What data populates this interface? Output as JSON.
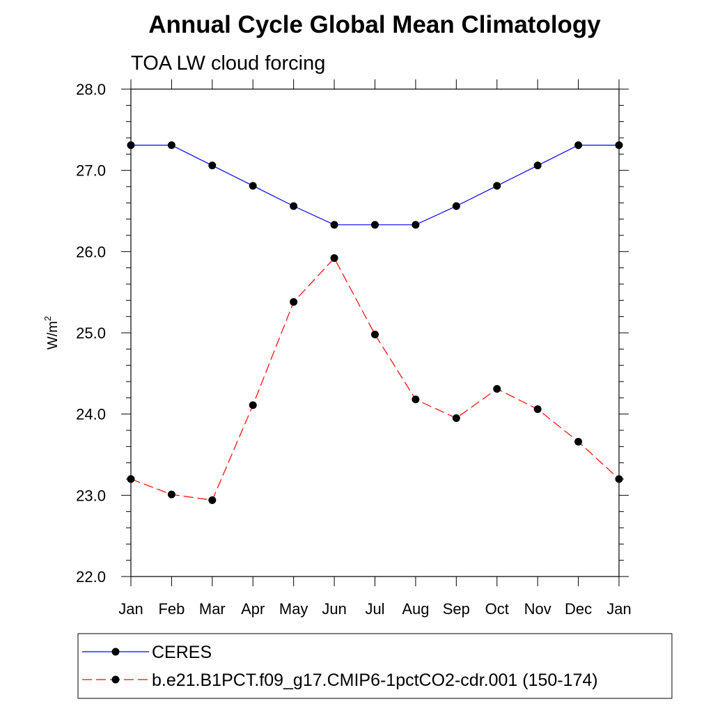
{
  "chart_data": {
    "type": "line",
    "title": "Annual Cycle Global Mean Climatology",
    "subtitle": "TOA LW cloud forcing",
    "xlabel": "",
    "ylabel": "W/m",
    "ylabel_superscript": "2",
    "categories": [
      "Jan",
      "Feb",
      "Mar",
      "Apr",
      "May",
      "Jun",
      "Jul",
      "Aug",
      "Sep",
      "Oct",
      "Nov",
      "Dec",
      "Jan"
    ],
    "ylim": [
      22.0,
      28.0
    ],
    "yticks": [
      "22.0",
      "23.0",
      "24.0",
      "25.0",
      "26.0",
      "27.0",
      "28.0"
    ],
    "grid": false,
    "legend_position": "bottom",
    "series": [
      {
        "name": "CERES",
        "color": "#0000ff",
        "line_style": "solid",
        "marker": "filled-circle",
        "values": [
          27.31,
          27.31,
          27.06,
          26.81,
          26.56,
          26.33,
          26.33,
          26.33,
          26.56,
          26.81,
          27.06,
          27.31,
          27.31
        ]
      },
      {
        "name": "b.e21.B1PCT.f09_g17.CMIP6-1pctCO2-cdr.001 (150-174)",
        "color": "#ff0000",
        "line_style": "dashed",
        "marker": "filled-circle",
        "values": [
          23.2,
          23.01,
          22.94,
          24.11,
          25.38,
          25.92,
          24.98,
          24.18,
          23.95,
          24.31,
          24.06,
          23.66,
          23.2
        ]
      }
    ]
  }
}
